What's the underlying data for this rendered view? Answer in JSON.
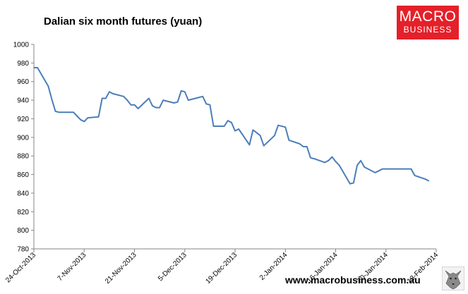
{
  "title": "Dalian six month futures (yuan)",
  "logo": {
    "line1": "MACRO",
    "line2": "BUSINESS"
  },
  "website": "www.macrobusiness.com.au",
  "colors": {
    "line": "#4a7ebb",
    "logo_bg": "#e4202a",
    "axis": "#868686"
  },
  "chart_data": {
    "type": "line",
    "title": "Dalian six month futures (yuan)",
    "xlabel": "",
    "ylabel": "",
    "ylim": [
      780,
      1000
    ],
    "ytick_step": 20,
    "grid": false,
    "x_tick_labels": [
      "24-Oct-2013",
      "7-Nov-2013",
      "21-Nov-2013",
      "5-Dec-2013",
      "19-Dec-2013",
      "2-Jan-2014",
      "16-Jan-2014",
      "30-Jan-2014",
      "13-Feb-2014"
    ],
    "x_range": [
      "2013-10-24",
      "2014-02-13"
    ],
    "series": [
      {
        "name": "",
        "x": [
          "2013-10-24",
          "2013-10-25",
          "2013-10-28",
          "2013-10-29",
          "2013-10-30",
          "2013-10-31",
          "2013-11-01",
          "2013-11-04",
          "2013-11-05",
          "2013-11-06",
          "2013-11-07",
          "2013-11-08",
          "2013-11-11",
          "2013-11-12",
          "2013-11-13",
          "2013-11-14",
          "2013-11-15",
          "2013-11-18",
          "2013-11-19",
          "2013-11-20",
          "2013-11-21",
          "2013-11-22",
          "2013-11-25",
          "2013-11-26",
          "2013-11-27",
          "2013-11-28",
          "2013-11-29",
          "2013-12-02",
          "2013-12-03",
          "2013-12-04",
          "2013-12-05",
          "2013-12-06",
          "2013-12-09",
          "2013-12-10",
          "2013-12-11",
          "2013-12-12",
          "2013-12-13",
          "2013-12-16",
          "2013-12-17",
          "2013-12-18",
          "2013-12-19",
          "2013-12-20",
          "2013-12-23",
          "2013-12-24",
          "2013-12-25",
          "2013-12-26",
          "2013-12-27",
          "2013-12-30",
          "2013-12-31",
          "2014-01-02",
          "2014-01-03",
          "2014-01-06",
          "2014-01-07",
          "2014-01-08",
          "2014-01-09",
          "2014-01-10",
          "2014-01-13",
          "2014-01-14",
          "2014-01-15",
          "2014-01-16",
          "2014-01-17",
          "2014-01-20",
          "2014-01-21",
          "2014-01-22",
          "2014-01-23",
          "2014-01-24",
          "2014-01-27",
          "2014-01-28",
          "2014-01-29",
          "2014-01-30",
          "2014-01-31",
          "2014-02-03",
          "2014-02-04",
          "2014-02-05",
          "2014-02-06",
          "2014-02-07",
          "2014-02-10",
          "2014-02-11"
        ],
        "values": [
          975,
          975,
          955,
          941,
          928,
          927,
          927,
          927,
          923,
          919,
          917,
          921,
          922,
          942,
          942,
          949,
          947,
          944,
          940,
          935,
          935,
          931,
          942,
          934,
          932,
          932,
          940,
          937,
          938,
          950,
          949,
          940,
          943,
          944,
          936,
          935,
          912,
          912,
          918,
          916,
          907,
          909,
          892,
          908,
          905,
          902,
          891,
          902,
          913,
          911,
          897,
          893,
          890,
          890,
          878,
          877,
          873,
          875,
          879,
          874,
          870,
          850,
          851,
          870,
          875,
          868,
          862,
          864,
          866,
          866,
          866,
          866,
          866,
          866,
          866,
          859,
          855,
          853
        ]
      }
    ]
  }
}
